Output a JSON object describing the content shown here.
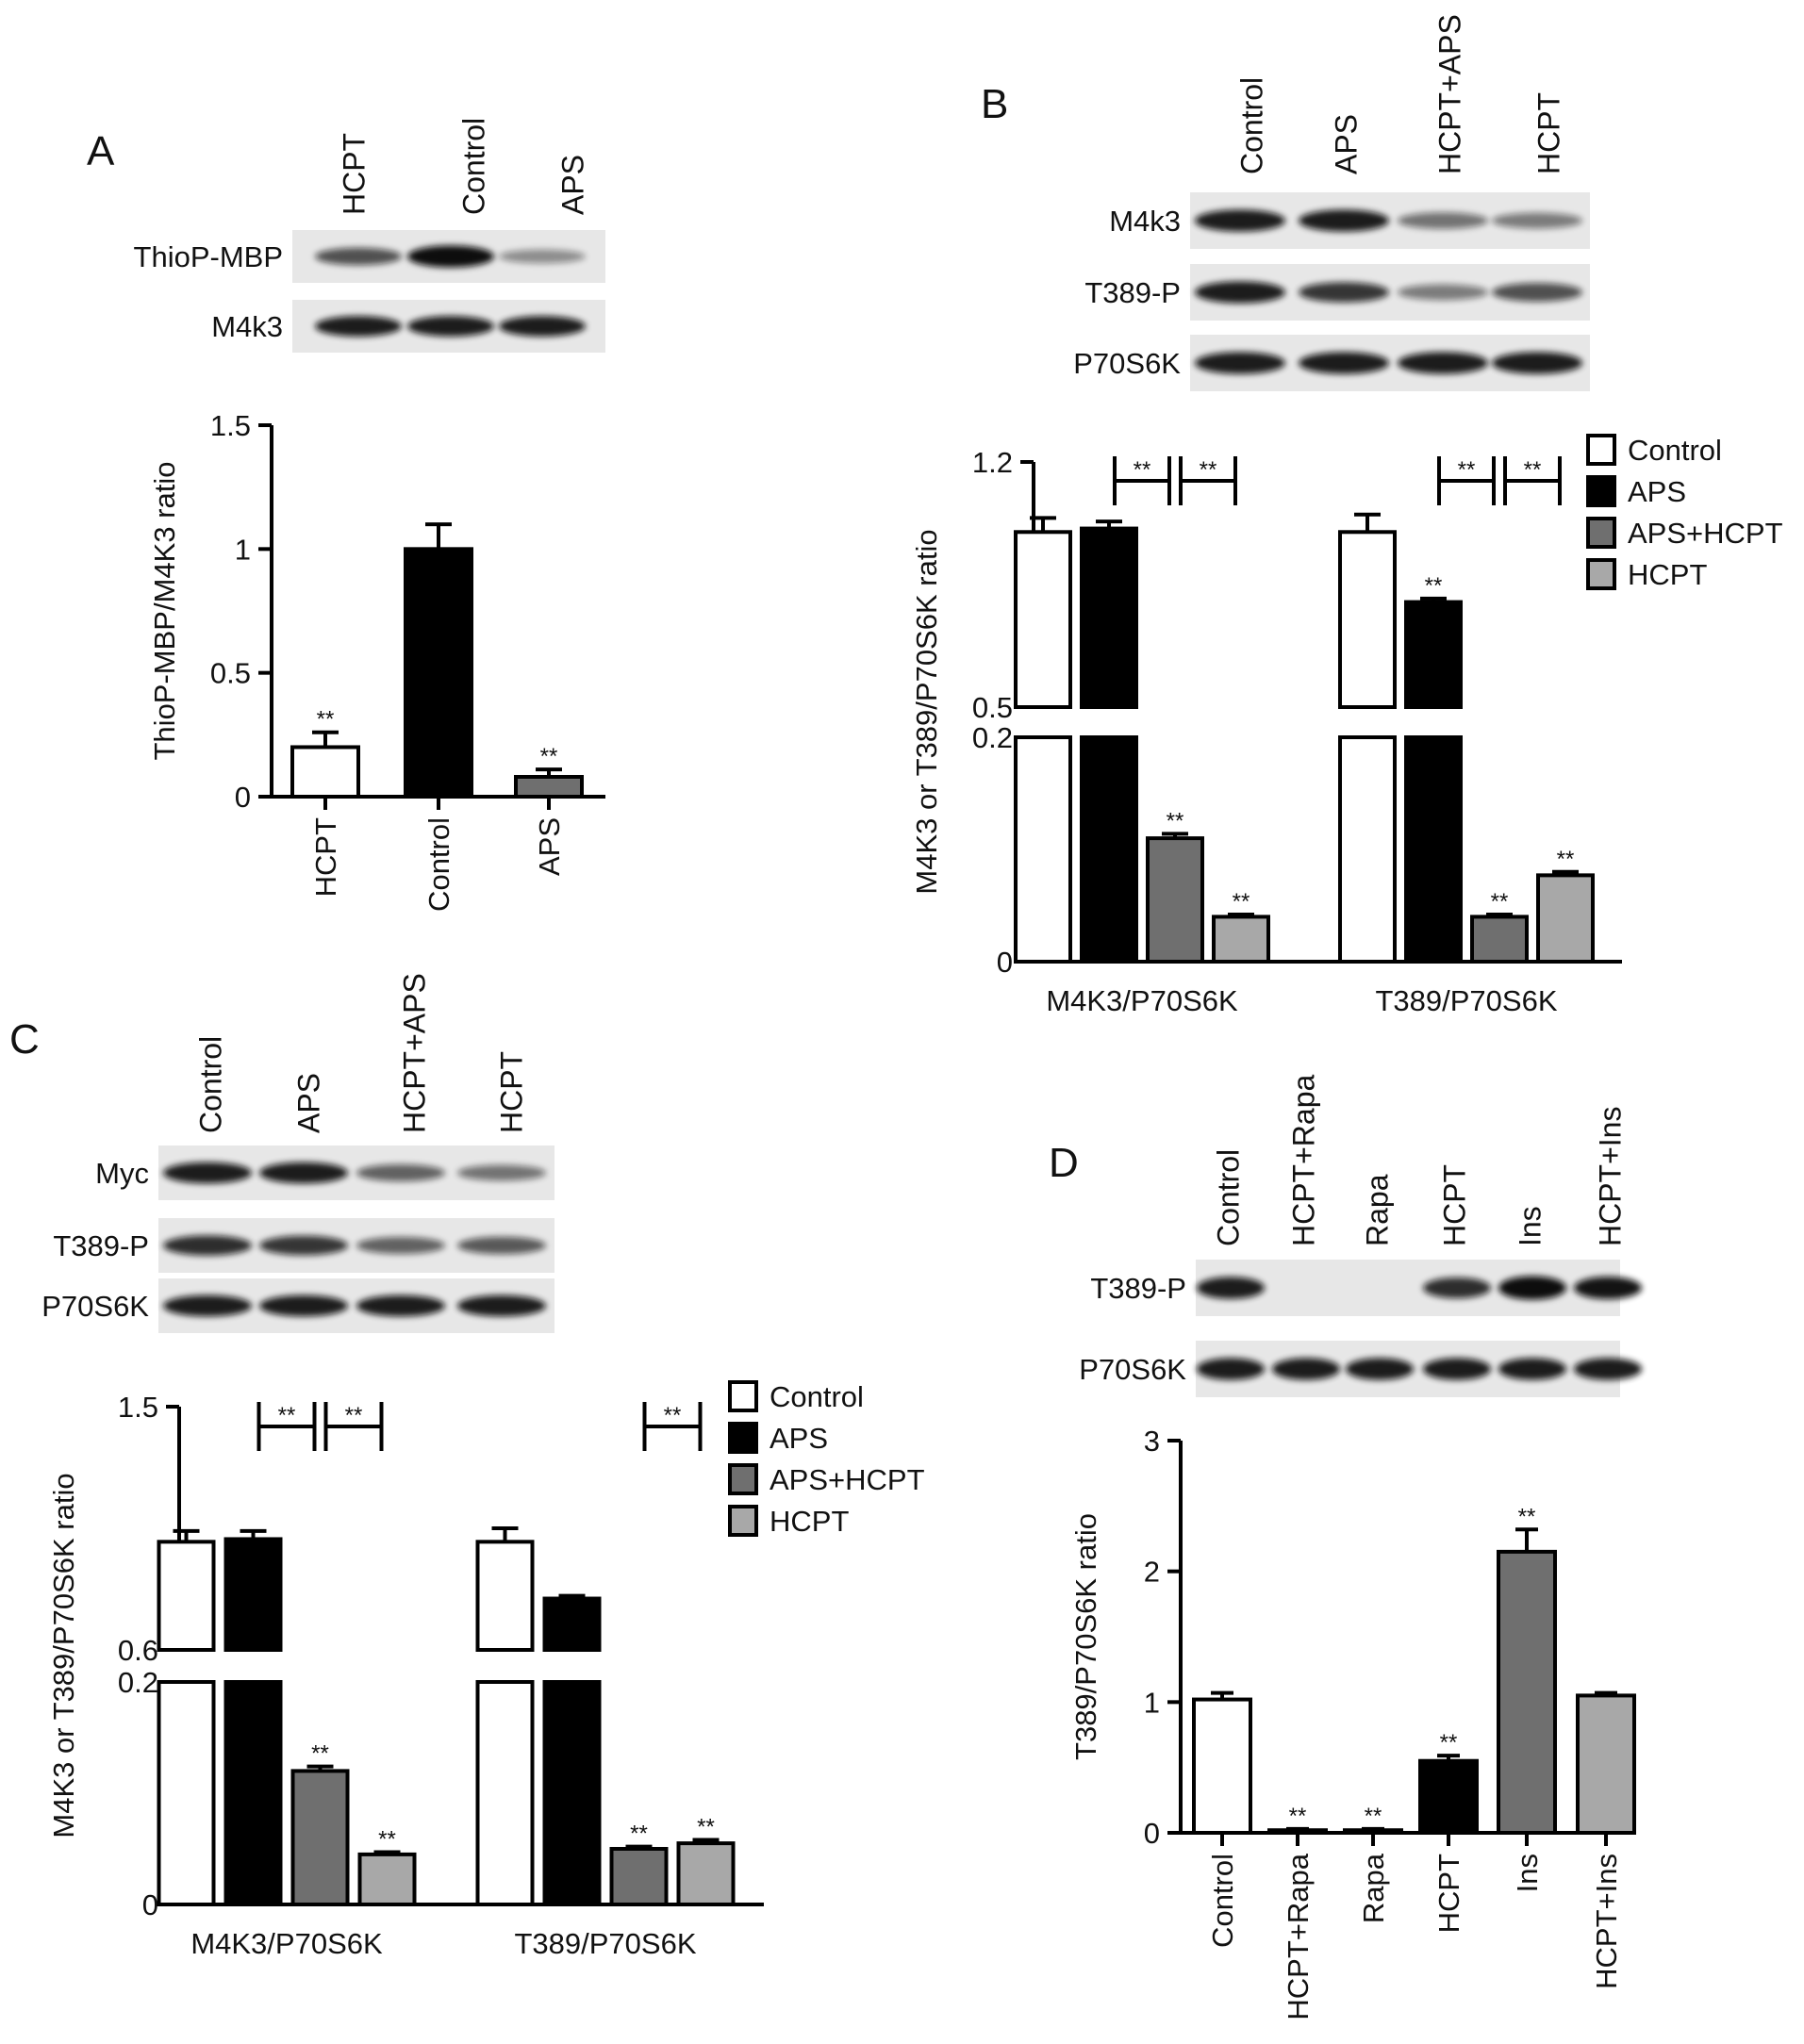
{
  "panels": {
    "A": {
      "letter": "A",
      "blot": {
        "lanes": [
          "HCPT",
          "Control",
          "APS"
        ],
        "rows": [
          {
            "label": "ThioP-MBP",
            "intensity": [
              0.55,
              1.0,
              0.2
            ]
          },
          {
            "label": "M4k3",
            "intensity": [
              0.85,
              0.85,
              0.85
            ]
          }
        ]
      }
    },
    "B": {
      "letter": "B",
      "blot": {
        "lanes": [
          "Control",
          "APS",
          "HCPT+APS",
          "HCPT"
        ],
        "rows": [
          {
            "label": "M4k3",
            "intensity": [
              0.85,
              0.85,
              0.35,
              0.3
            ]
          },
          {
            "label": "T389-P",
            "intensity": [
              0.85,
              0.7,
              0.3,
              0.55
            ]
          },
          {
            "label": "P70S6K",
            "intensity": [
              0.85,
              0.85,
              0.85,
              0.85
            ]
          }
        ]
      }
    },
    "C": {
      "letter": "C",
      "blot": {
        "lanes": [
          "Control",
          "APS",
          "HCPT+APS",
          "HCPT"
        ],
        "rows": [
          {
            "label": "Myc",
            "intensity": [
              0.85,
              0.85,
              0.45,
              0.35
            ]
          },
          {
            "label": "T389-P",
            "intensity": [
              0.75,
              0.7,
              0.45,
              0.5
            ]
          },
          {
            "label": "P70S6K",
            "intensity": [
              0.85,
              0.85,
              0.85,
              0.85
            ]
          }
        ]
      }
    },
    "D": {
      "letter": "D",
      "blot": {
        "lanes": [
          "Control",
          "HCPT+Rapa",
          "Rapa",
          "HCPT",
          "Ins",
          "HCPT+Ins"
        ],
        "rows": [
          {
            "label": "T389-P",
            "intensity": [
              0.85,
              0.0,
              0.0,
              0.75,
              1.0,
              0.9
            ]
          },
          {
            "label": "P70S6K",
            "intensity": [
              0.85,
              0.85,
              0.85,
              0.85,
              0.85,
              0.85
            ]
          }
        ]
      }
    }
  },
  "colors": {
    "control": "#ffffff",
    "aps": "#000000",
    "aps_hcpt": "#6f6f6f",
    "hcpt": "#a8a8a8"
  },
  "chart_data": [
    {
      "panel": "A",
      "type": "bar",
      "categories": [
        "HCPT",
        "Control",
        "APS"
      ],
      "values": [
        0.2,
        1.0,
        0.08
      ],
      "errors": [
        0.06,
        0.1,
        0.03
      ],
      "significance": [
        "**",
        "",
        "**"
      ],
      "fills": [
        "#ffffff",
        "#000000",
        "#6f6f6f"
      ],
      "ylabel": "ThioP-MBP/M4K3 ratio",
      "ylim": [
        0,
        1.5
      ],
      "yticks": [
        0,
        0.5,
        1,
        1.5
      ],
      "ytick_labels": [
        "0",
        "0.5",
        "1",
        "1.5"
      ],
      "grid": false
    },
    {
      "panel": "B",
      "type": "bar",
      "broken_axis": true,
      "categories": [
        "M4K3/P70S6K",
        "T389/P70S6K"
      ],
      "series": [
        {
          "name": "Control",
          "values": [
            1.0,
            1.0
          ],
          "errors": [
            0.04,
            0.05
          ],
          "significance": [
            "",
            ""
          ]
        },
        {
          "name": "APS",
          "values": [
            1.01,
            0.8
          ],
          "errors": [
            0.02,
            0.01
          ],
          "significance": [
            "",
            "**"
          ]
        },
        {
          "name": "APS+HCPT",
          "values": [
            0.11,
            0.04
          ],
          "errors": [
            0.004,
            0.002
          ],
          "significance": [
            "**",
            "**"
          ]
        },
        {
          "name": "HCPT",
          "values": [
            0.04,
            0.077
          ],
          "errors": [
            0.002,
            0.003
          ],
          "significance": [
            "**",
            "**"
          ]
        }
      ],
      "ylabel": "M4K3 or T389/P70S6K ratio",
      "lower_ylim": [
        0,
        0.2
      ],
      "upper_ylim": [
        0.5,
        1.2
      ],
      "ytick_labels": [
        "0",
        "0.2",
        "0.5",
        "1.2"
      ],
      "brackets": [
        {
          "category": 0,
          "from": 1,
          "to": 2,
          "label": "**"
        },
        {
          "category": 0,
          "from": 2,
          "to": 3,
          "label": "**"
        },
        {
          "category": 1,
          "from": 1,
          "to": 2,
          "label": "**"
        },
        {
          "category": 1,
          "from": 2,
          "to": 3,
          "label": "**"
        }
      ],
      "legend": {
        "position": "top-right",
        "entries": [
          "Control",
          "APS",
          "APS+HCPT",
          "HCPT"
        ]
      },
      "grid": false
    },
    {
      "panel": "C",
      "type": "bar",
      "broken_axis": true,
      "categories": [
        "M4K3/P70S6K",
        "T389/P70S6K"
      ],
      "series": [
        {
          "name": "Control",
          "values": [
            1.0,
            1.0
          ],
          "errors": [
            0.04,
            0.05
          ],
          "significance": [
            "",
            ""
          ]
        },
        {
          "name": "APS",
          "values": [
            1.01,
            0.79
          ],
          "errors": [
            0.03,
            0.01
          ],
          "significance": [
            "",
            ""
          ]
        },
        {
          "name": "APS+HCPT",
          "values": [
            0.12,
            0.05
          ],
          "errors": [
            0.004,
            0.002
          ],
          "significance": [
            "**",
            "**"
          ]
        },
        {
          "name": "HCPT",
          "values": [
            0.045,
            0.055
          ],
          "errors": [
            0.002,
            0.003
          ],
          "significance": [
            "**",
            "**"
          ]
        }
      ],
      "ylabel": "M4K3 or T389/P70S6K ratio",
      "lower_ylim": [
        0,
        0.2
      ],
      "upper_ylim": [
        0.6,
        1.5
      ],
      "ytick_labels": [
        "0",
        "0.2",
        "0.6",
        "1.5"
      ],
      "brackets": [
        {
          "category": 0,
          "from": 1,
          "to": 2,
          "label": "**"
        },
        {
          "category": 0,
          "from": 2,
          "to": 3,
          "label": "**"
        },
        {
          "category": 1,
          "from": 2,
          "to": 3,
          "label": "**"
        }
      ],
      "legend": {
        "position": "top-right",
        "entries": [
          "Control",
          "APS",
          "APS+HCPT",
          "HCPT"
        ]
      },
      "grid": false
    },
    {
      "panel": "D",
      "type": "bar",
      "categories": [
        "Control",
        "HCPT+Rapa",
        "Rapa",
        "HCPT",
        "Ins",
        "HCPT+Ins"
      ],
      "values": [
        1.02,
        0.02,
        0.02,
        0.55,
        2.15,
        1.05
      ],
      "errors": [
        0.05,
        0.01,
        0.01,
        0.04,
        0.17,
        0.02
      ],
      "significance": [
        "",
        "**",
        "**",
        "**",
        "**",
        ""
      ],
      "fills": [
        "#ffffff",
        "#ffffff",
        "#ffffff",
        "#000000",
        "#6f6f6f",
        "#a8a8a8"
      ],
      "ylabel": "T389/P70S6K ratio",
      "ylim": [
        0,
        3
      ],
      "yticks": [
        0,
        1,
        2,
        3
      ],
      "ytick_labels": [
        "0",
        "1",
        "2",
        "3"
      ],
      "grid": false
    }
  ]
}
